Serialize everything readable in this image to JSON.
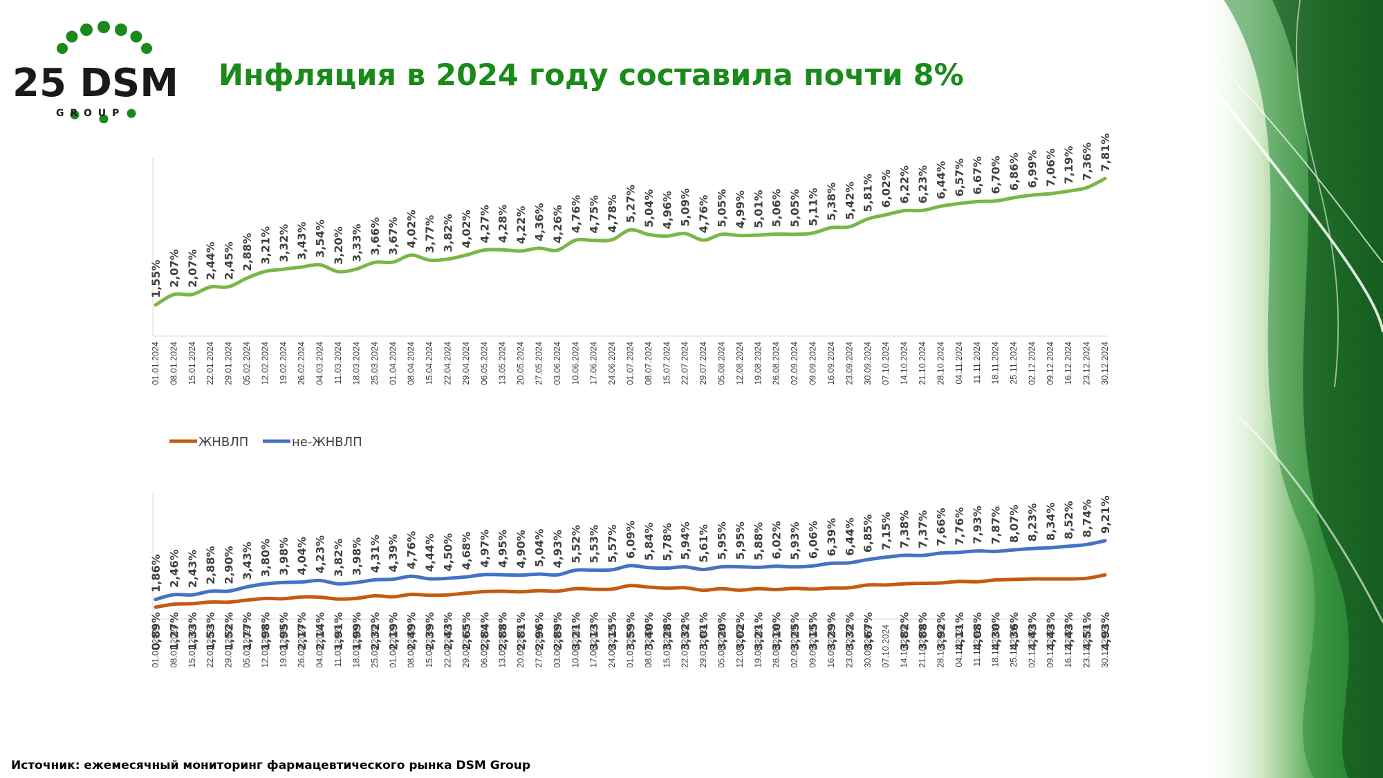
{
  "logo": {
    "text": "25 DSM",
    "sub": "G R O U P"
  },
  "title": "Инфляция в 2024 году составила почти 8%",
  "source": "Источник: ежемесячный мониторинг фармацевтического рынка DSM Group",
  "colors": {
    "title": "#1a8a1a",
    "total": "#7ab648",
    "zhnvlp": "#c55a11",
    "ne_zhnvlp": "#4472c4"
  },
  "chart_data": [
    {
      "type": "line",
      "title": "",
      "x": [
        "01.01.2024",
        "08.01.2024",
        "15.01.2024",
        "22.01.2024",
        "29.01.2024",
        "05.02.2024",
        "12.02.2024",
        "19.02.2024",
        "26.02.2024",
        "04.03.2024",
        "11.03.2024",
        "18.03.2024",
        "25.03.2024",
        "01.04.2024",
        "08.04.2024",
        "15.04.2024",
        "22.04.2024",
        "29.04.2024",
        "06.05.2024",
        "13.05.2024",
        "20.05.2024",
        "27.05.2024",
        "03.06.2024",
        "10.06.2024",
        "17.06.2024",
        "24.06.2024",
        "01.07.2024",
        "08.07.2024",
        "15.07.2024",
        "22.07.2024",
        "29.07.2024",
        "05.08.2024",
        "12.08.2024",
        "19.08.2024",
        "26.08.2024",
        "02.09.2024",
        "09.09.2024",
        "16.09.2024",
        "23.09.2024",
        "30.09.2024",
        "07.10.2024",
        "14.10.2024",
        "21.10.2024",
        "28.10.2024",
        "04.11.2024",
        "11.11.2024",
        "18.11.2024",
        "25.11.2024",
        "02.12.2024",
        "09.12.2024",
        "16.12.2024",
        "23.12.2024",
        "30.12.2024"
      ],
      "series": [
        {
          "values": [
            1.55,
            2.07,
            2.07,
            2.44,
            2.45,
            2.88,
            3.21,
            3.32,
            3.43,
            3.54,
            3.2,
            3.33,
            3.66,
            3.67,
            4.02,
            3.77,
            3.82,
            4.02,
            4.27,
            4.28,
            4.22,
            4.36,
            4.26,
            4.76,
            4.75,
            4.78,
            5.27,
            5.04,
            4.96,
            5.09,
            4.76,
            5.05,
            4.99,
            5.01,
            5.06,
            5.05,
            5.11,
            5.38,
            5.42,
            5.81,
            6.02,
            6.22,
            6.23,
            6.44,
            6.57,
            6.67,
            6.7,
            6.86,
            6.99,
            7.06,
            7.19,
            7.36,
            7.81
          ],
          "labels": [
            "1,55%",
            "2,07%",
            "2,07%",
            "2,44%",
            "2,45%",
            "2,88%",
            "3,21%",
            "3,32%",
            "3,43%",
            "3,54%",
            "3,20%",
            "3,33%",
            "3,66%",
            "3,67%",
            "4,02%",
            "3,77%",
            "3,82%",
            "4,02%",
            "4,27%",
            "4,28%",
            "4,22%",
            "4,36%",
            "4,26%",
            "4,76%",
            "4,75%",
            "4,78%",
            "5,27%",
            "5,04%",
            "4,96%",
            "5,09%",
            "4,76%",
            "5,05%",
            "4,99%",
            "5,01%",
            "5,06%",
            "5,05%",
            "5,11%",
            "5,38%",
            "5,42%",
            "5,81%",
            "6,02%",
            "6,22%",
            "6,23%",
            "6,44%",
            "6,57%",
            "6,67%",
            "6,70%",
            "6,86%",
            "6,99%",
            "7,06%",
            "7,19%",
            "7,36%",
            "7,81%"
          ]
        }
      ],
      "xlabel": "",
      "ylabel": "",
      "grid": false
    },
    {
      "type": "line",
      "title": "",
      "x": [
        "01.01.2024",
        "08.01.2024",
        "15.01.2024",
        "22.01.2024",
        "29.01.2024",
        "05.02.2024",
        "12.02.2024",
        "19.02.2024",
        "26.02.2024",
        "04.03.2024",
        "11.03.2024",
        "18.03.2024",
        "25.03.2024",
        "01.04.2024",
        "08.04.2024",
        "15.04.2024",
        "22.04.2024",
        "29.04.2024",
        "06.05.2024",
        "13.05.2024",
        "20.05.2024",
        "27.05.2024",
        "03.06.2024",
        "10.06.2024",
        "17.06.2024",
        "24.06.2024",
        "01.07.2024",
        "08.07.2024",
        "15.07.2024",
        "22.07.2024",
        "29.07.2024",
        "05.08.2024",
        "12.08.2024",
        "19.08.2024",
        "26.08.2024",
        "02.09.2024",
        "09.09.2024",
        "16.09.2024",
        "23.09.2024",
        "30.09.2024",
        "07.10.2024",
        "14.10.2024",
        "21.10.2024",
        "28.10.2024",
        "04.11.2024",
        "11.11.2024",
        "18.11.2024",
        "25.11.2024",
        "02.12.2024",
        "09.12.2024",
        "16.12.2024",
        "23.12.2024",
        "30.12.2024"
      ],
      "legend": {
        "position": "top-left"
      },
      "series": [
        {
          "name": "ЖНВЛП",
          "values": [
            0.89,
            1.27,
            1.33,
            1.53,
            1.52,
            1.77,
            1.98,
            1.95,
            2.17,
            2.14,
            1.91,
            1.99,
            2.32,
            2.19,
            2.49,
            2.39,
            2.43,
            2.65,
            2.84,
            2.88,
            2.81,
            2.96,
            2.89,
            3.21,
            3.13,
            3.15,
            3.59,
            3.4,
            3.28,
            3.32,
            3.01,
            3.2,
            3.02,
            3.21,
            3.1,
            3.25,
            3.15,
            3.29,
            3.32,
            3.67,
            3.67,
            3.82,
            3.88,
            3.92,
            4.11,
            4.08,
            4.3,
            4.36,
            4.43,
            4.43,
            4.43,
            4.51,
            4.93
          ],
          "labels": [
            "0,89%",
            "1,27%",
            "1,33%",
            "1,53%",
            "1,52%",
            "1,77%",
            "1,98%",
            "1,95%",
            "2,17%",
            "2,14%",
            "1,91%",
            "1,99%",
            "2,32%",
            "2,19%",
            "2,49%",
            "2,39%",
            "2,43%",
            "2,65%",
            "2,84%",
            "2,88%",
            "2,81%",
            "2,96%",
            "2,89%",
            "3,21%",
            "3,13%",
            "3,15%",
            "3,59%",
            "3,40%",
            "3,28%",
            "3,32%",
            "3,01%",
            "3,20%",
            "3,02%",
            "3,21%",
            "3,10%",
            "3,25%",
            "3,15%",
            "3,29%",
            "3,32%",
            "3,67%",
            "",
            "3,82%",
            "3,88%",
            "3,92%",
            "4,11%",
            "4,08%",
            "4,30%",
            "4,36%",
            "4,43%",
            "4,43%",
            "4,43%",
            "4,51%",
            "4,93%"
          ]
        },
        {
          "name": "не-ЖНВЛП",
          "values": [
            1.86,
            2.46,
            2.43,
            2.88,
            2.9,
            3.43,
            3.8,
            3.98,
            4.04,
            4.23,
            3.82,
            3.98,
            4.31,
            4.39,
            4.76,
            4.44,
            4.5,
            4.68,
            4.97,
            4.95,
            4.9,
            5.04,
            4.93,
            5.52,
            5.53,
            5.57,
            6.09,
            5.84,
            5.78,
            5.94,
            5.61,
            5.95,
            5.95,
            5.88,
            6.02,
            5.93,
            6.06,
            6.39,
            6.44,
            6.85,
            7.15,
            7.38,
            7.37,
            7.66,
            7.76,
            7.93,
            7.87,
            8.07,
            8.23,
            8.34,
            8.52,
            8.74,
            9.21
          ],
          "labels": [
            "1,86%",
            "2,46%",
            "2,43%",
            "2,88%",
            "2,90%",
            "3,43%",
            "3,80%",
            "3,98%",
            "4,04%",
            "4,23%",
            "3,82%",
            "3,98%",
            "4,31%",
            "4,39%",
            "4,76%",
            "4,44%",
            "4,50%",
            "4,68%",
            "4,97%",
            "4,95%",
            "4,90%",
            "5,04%",
            "4,93%",
            "5,52%",
            "5,53%",
            "5,57%",
            "6,09%",
            "5,84%",
            "5,78%",
            "5,94%",
            "5,61%",
            "5,95%",
            "5,95%",
            "5,88%",
            "6,02%",
            "5,93%",
            "6,06%",
            "6,39%",
            "6,44%",
            "6,85%",
            "7,15%",
            "7,38%",
            "7,37%",
            "7,66%",
            "7,76%",
            "7,93%",
            "7,87%",
            "8,07%",
            "8,23%",
            "8,34%",
            "8,52%",
            "8,74%",
            "9,21%"
          ]
        }
      ],
      "xlabel": "",
      "ylabel": "",
      "grid": false
    }
  ]
}
